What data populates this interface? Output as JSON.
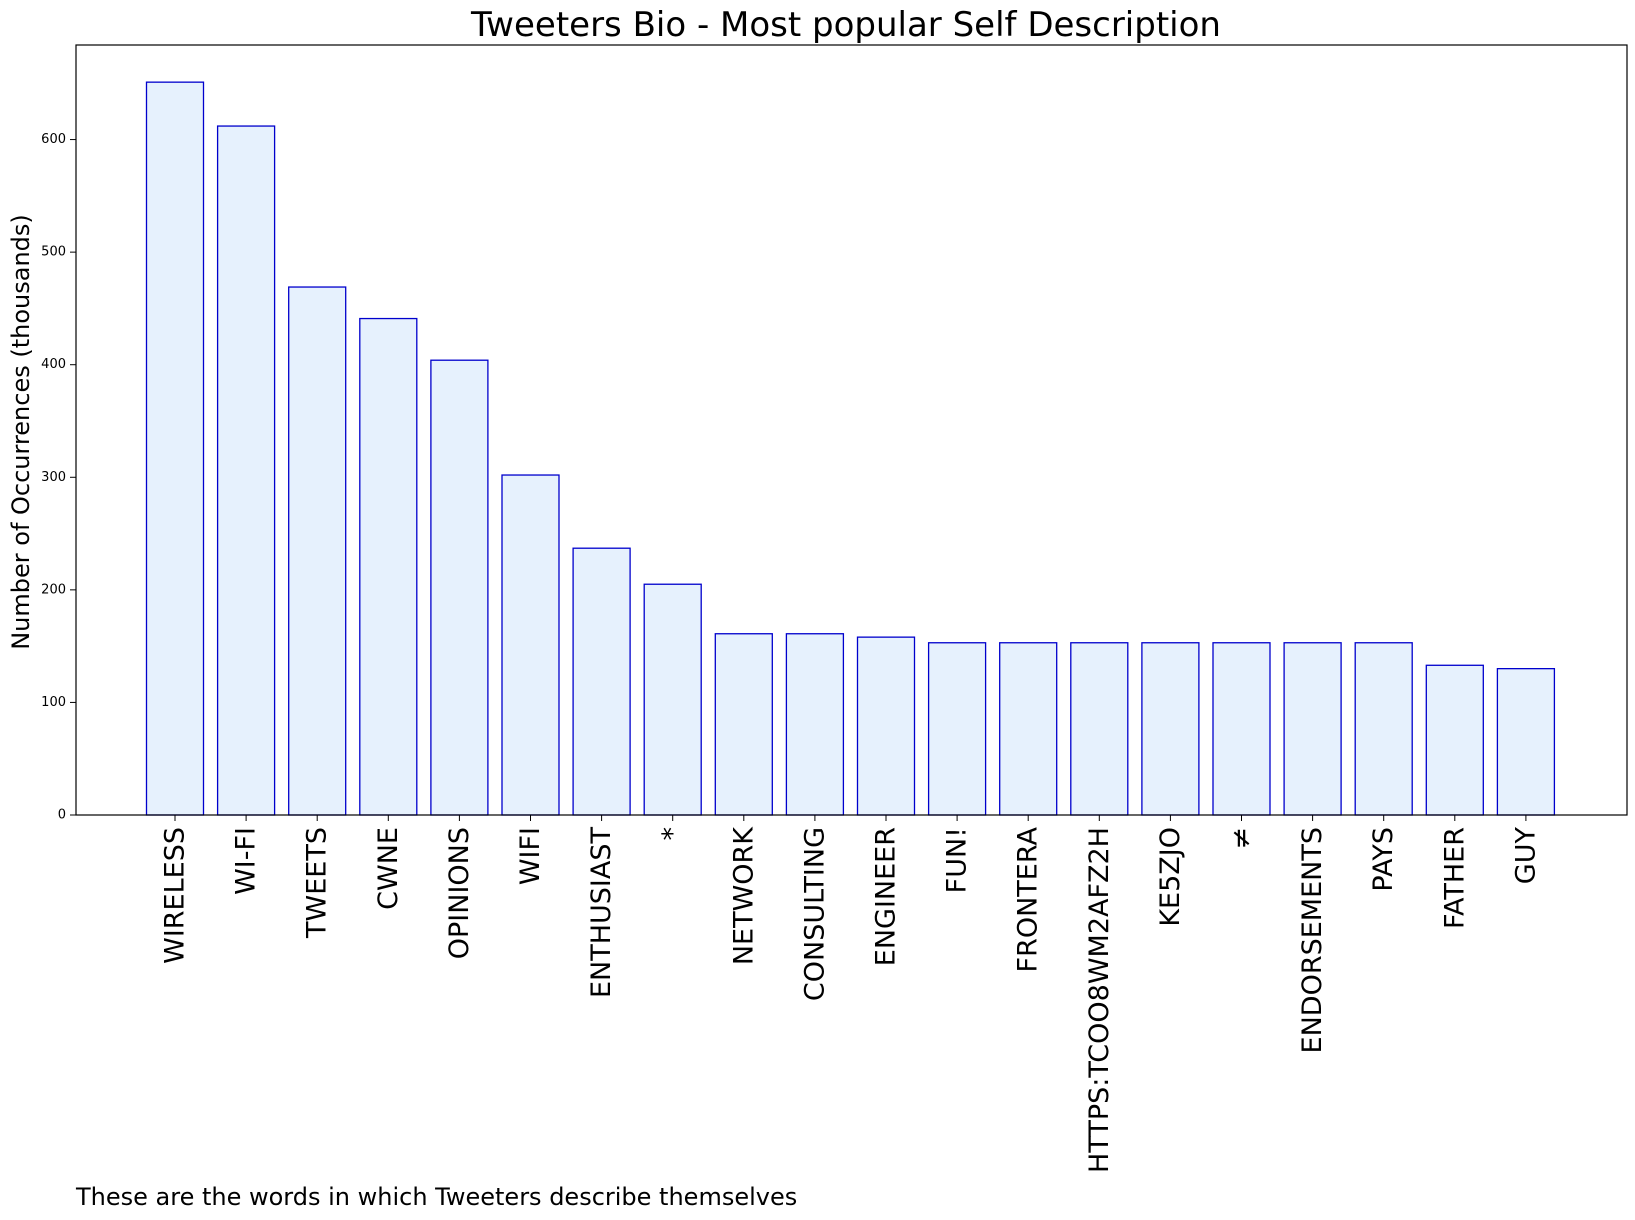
{
  "chart_data": {
    "type": "bar",
    "title": "Tweeters Bio - Most popular Self Description",
    "xlabel": "",
    "ylabel": "Number of Occurrences (thousands)",
    "caption": "These are the words in which Tweeters describe themselves",
    "categories": [
      "WIRELESS",
      "WI-FI",
      "TWEETS",
      "CWNE",
      "OPINIONS",
      "WIFI",
      "ENTHUSIAST",
      "*",
      "NETWORK",
      "CONSULTING",
      "ENGINEER",
      "FUN!",
      "FRONTERA",
      "HTTPS:TCOO8WM2AFZ2H",
      "KE5ZJO",
      "≠",
      "ENDORSEMENTS",
      "PAYS",
      "FATHER",
      "GUY"
    ],
    "values": [
      651,
      612,
      469,
      441,
      404,
      302,
      237,
      205,
      161,
      161,
      158,
      153,
      153,
      153,
      153,
      153,
      153,
      153,
      133,
      130
    ],
    "ylim": [
      0,
      684
    ],
    "yticks": [
      0,
      100,
      200,
      300,
      400,
      500,
      600
    ],
    "grid": false,
    "colors": {
      "bar_fill": "#e6f1fd",
      "bar_edge": "#0000cc"
    }
  }
}
